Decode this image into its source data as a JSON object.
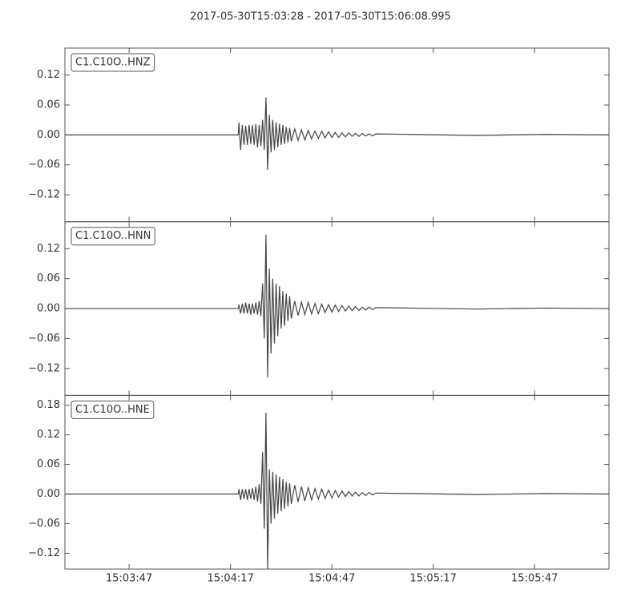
{
  "title": "2017-05-30T15:03:28  -  2017-05-30T15:06:08.995",
  "chart_data": [
    {
      "type": "line",
      "title": "C1.C10O..HNZ",
      "color": "#444444",
      "x": [
        54208,
        54230,
        54250,
        54259.3,
        54259.5,
        54260,
        54260.5,
        54261,
        54261.5,
        54262,
        54262.5,
        54263,
        54263.5,
        54264,
        54264.5,
        54265,
        54265.5,
        54266,
        54266.5,
        54267,
        54267.5,
        54268,
        54268.5,
        54269,
        54269.5,
        54270,
        54270.5,
        54271,
        54271.5,
        54272,
        54272.5,
        54273,
        54273.5,
        54274,
        54274.5,
        54275,
        54276,
        54277,
        54278,
        54279,
        54280,
        54281,
        54282,
        54283,
        54284,
        54285,
        54286,
        54287,
        54288,
        54289,
        54290,
        54291,
        54292,
        54293,
        54294,
        54295,
        54296,
        54297,
        54298,
        54299,
        54300,
        54310,
        54330,
        54350,
        54368.995
      ],
      "values": [
        0,
        0,
        0,
        0,
        0.025,
        -0.03,
        0.02,
        -0.02,
        0.018,
        -0.02,
        0.02,
        -0.018,
        0.02,
        -0.02,
        0.022,
        -0.025,
        0.02,
        -0.022,
        0.03,
        -0.03,
        0.075,
        -0.07,
        0.04,
        -0.035,
        0.03,
        -0.03,
        0.025,
        -0.025,
        0.022,
        -0.02,
        0.02,
        -0.018,
        0.016,
        -0.015,
        0.014,
        -0.013,
        0.012,
        -0.011,
        0.01,
        -0.01,
        0.009,
        -0.008,
        0.008,
        -0.007,
        0.007,
        -0.006,
        0.006,
        -0.005,
        0.005,
        -0.005,
        0.004,
        -0.004,
        0.004,
        -0.003,
        0.003,
        -0.003,
        0.003,
        -0.002,
        0.002,
        -0.002,
        0.002,
        0.001,
        -0.001,
        0.001,
        0
      ],
      "ylim": [
        -0.174,
        0.174
      ],
      "yticks": [
        {
          "value": -0.12,
          "label": "−0.12"
        },
        {
          "value": -0.06,
          "label": "−0.06"
        },
        {
          "value": 0,
          "label": "0.00"
        },
        {
          "value": 0.06,
          "label": "0.06"
        },
        {
          "value": 0.12,
          "label": "0.12"
        }
      ]
    },
    {
      "type": "line",
      "title": "C1.C10O..HNN",
      "color": "#444444",
      "x": [
        54208,
        54230,
        54250,
        54259.3,
        54259.5,
        54260,
        54260.5,
        54261,
        54261.5,
        54262,
        54262.5,
        54263,
        54263.5,
        54264,
        54264.5,
        54265,
        54265.5,
        54266,
        54266.5,
        54267,
        54267.5,
        54268,
        54268.5,
        54269,
        54269.5,
        54270,
        54270.5,
        54271,
        54271.5,
        54272,
        54272.5,
        54273,
        54273.5,
        54274,
        54274.5,
        54275,
        54276,
        54277,
        54278,
        54279,
        54280,
        54281,
        54282,
        54283,
        54284,
        54285,
        54286,
        54287,
        54288,
        54289,
        54290,
        54291,
        54292,
        54293,
        54294,
        54295,
        54296,
        54297,
        54298,
        54299,
        54300,
        54310,
        54330,
        54350,
        54368.995
      ],
      "values": [
        0,
        0,
        0,
        0,
        0.008,
        -0.01,
        0.01,
        -0.01,
        0.012,
        -0.01,
        0.01,
        -0.012,
        0.01,
        -0.01,
        0.012,
        -0.012,
        0.015,
        -0.015,
        0.05,
        -0.06,
        0.148,
        -0.138,
        0.08,
        -0.09,
        0.06,
        -0.07,
        0.05,
        -0.055,
        0.045,
        -0.04,
        0.035,
        -0.035,
        0.03,
        -0.025,
        0.025,
        -0.02,
        0.015,
        -0.014,
        0.013,
        -0.012,
        0.012,
        -0.011,
        0.01,
        -0.01,
        0.009,
        -0.008,
        0.008,
        -0.007,
        0.007,
        -0.006,
        0.006,
        -0.005,
        0.005,
        -0.004,
        0.004,
        -0.004,
        0.003,
        -0.003,
        0.003,
        -0.002,
        0.002,
        0.001,
        -0.001,
        0.001,
        0
      ],
      "ylim": [
        -0.174,
        0.174
      ],
      "yticks": [
        {
          "value": -0.12,
          "label": "−0.12"
        },
        {
          "value": -0.06,
          "label": "−0.06"
        },
        {
          "value": 0,
          "label": "0.00"
        },
        {
          "value": 0.06,
          "label": "0.06"
        },
        {
          "value": 0.12,
          "label": "0.12"
        }
      ]
    },
    {
      "type": "line",
      "title": "C1.C10O..HNE",
      "color": "#444444",
      "x": [
        54208,
        54230,
        54250,
        54259.3,
        54259.5,
        54260,
        54260.5,
        54261,
        54261.5,
        54262,
        54262.5,
        54263,
        54263.5,
        54264,
        54264.5,
        54265,
        54265.5,
        54266,
        54266.5,
        54267,
        54267.5,
        54268,
        54268.5,
        54269,
        54269.5,
        54270,
        54270.5,
        54271,
        54271.5,
        54272,
        54272.5,
        54273,
        54273.5,
        54274,
        54274.5,
        54275,
        54276,
        54277,
        54278,
        54279,
        54280,
        54281,
        54282,
        54283,
        54284,
        54285,
        54286,
        54287,
        54288,
        54289,
        54290,
        54291,
        54292,
        54293,
        54294,
        54295,
        54296,
        54297,
        54298,
        54299,
        54300,
        54310,
        54330,
        54350,
        54368.995
      ],
      "values": [
        0,
        0,
        0,
        0,
        0.01,
        -0.012,
        0.01,
        -0.01,
        0.01,
        -0.012,
        0.01,
        -0.01,
        0.012,
        -0.012,
        0.015,
        -0.015,
        0.02,
        -0.02,
        0.085,
        -0.07,
        0.165,
        -0.152,
        0.05,
        -0.06,
        0.045,
        -0.05,
        0.04,
        -0.04,
        0.035,
        -0.035,
        0.03,
        -0.03,
        0.025,
        -0.025,
        0.022,
        -0.02,
        0.018,
        -0.016,
        0.015,
        -0.014,
        0.013,
        -0.012,
        0.011,
        -0.01,
        0.01,
        -0.009,
        0.008,
        -0.008,
        0.007,
        -0.006,
        0.006,
        -0.005,
        0.005,
        -0.004,
        0.004,
        -0.004,
        0.003,
        -0.003,
        0.003,
        -0.002,
        0.002,
        0.001,
        -0.001,
        0.001,
        0
      ],
      "ylim": [
        -0.152,
        0.2
      ],
      "yticks": [
        {
          "value": -0.12,
          "label": "−0.12"
        },
        {
          "value": -0.06,
          "label": "−0.06"
        },
        {
          "value": 0,
          "label": "0.00"
        },
        {
          "value": 0.06,
          "label": "0.06"
        },
        {
          "value": 0.12,
          "label": "0.12"
        },
        {
          "value": 0.18,
          "label": "0.18"
        }
      ],
      "xlim": [
        54208,
        54368.995
      ],
      "xticks": [
        {
          "value": 54227,
          "label": "15:03:47"
        },
        {
          "value": 54257,
          "label": "15:04:17"
        },
        {
          "value": 54287,
          "label": "15:04:47"
        },
        {
          "value": 54317,
          "label": "15:05:17"
        },
        {
          "value": 54347,
          "label": "15:05:47"
        }
      ]
    }
  ]
}
